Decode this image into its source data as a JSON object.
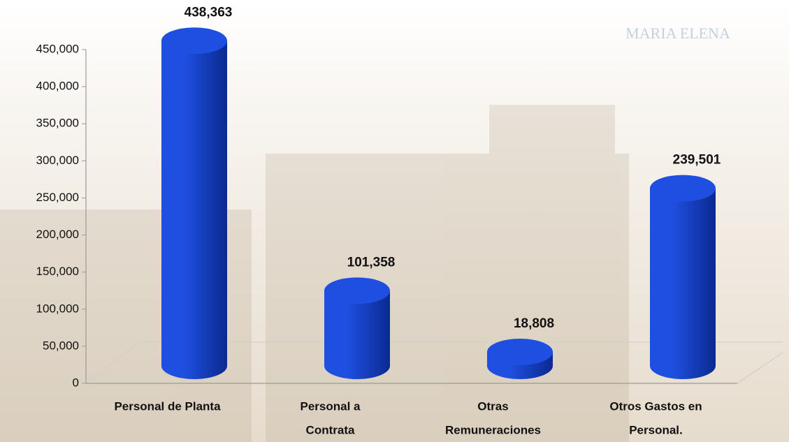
{
  "chart_data": {
    "type": "bar",
    "style": "3d-cylinder",
    "categories": [
      [
        "Personal de Planta"
      ],
      [
        "Personal  a",
        "Contrata"
      ],
      [
        "Otras",
        "Remuneraciones"
      ],
      [
        "Otros Gastos en",
        "Personal."
      ]
    ],
    "values": [
      438363,
      101358,
      18808,
      239501
    ],
    "value_labels": [
      "438,363",
      "101,358",
      "18,808",
      "239,501"
    ],
    "color": "#1f4fe0",
    "ylim": [
      0,
      450000
    ],
    "yticks": [
      0,
      {
        "value": 50000,
        "label": "50,000"
      },
      {
        "value": 100000,
        "label": "100,000"
      },
      {
        "value": 150000,
        "label": "150,000"
      },
      {
        "value": 200000,
        "label": "200,000"
      },
      {
        "value": 250000,
        "label": "250,000"
      },
      {
        "value": 300000,
        "label": "300,000"
      },
      {
        "value": 350000,
        "label": "350,000"
      },
      {
        "value": 400000,
        "label": "400,000"
      },
      {
        "value": 450000,
        "label": "450,000"
      }
    ],
    "grid": false,
    "watermark": "MARIA ELENA"
  }
}
